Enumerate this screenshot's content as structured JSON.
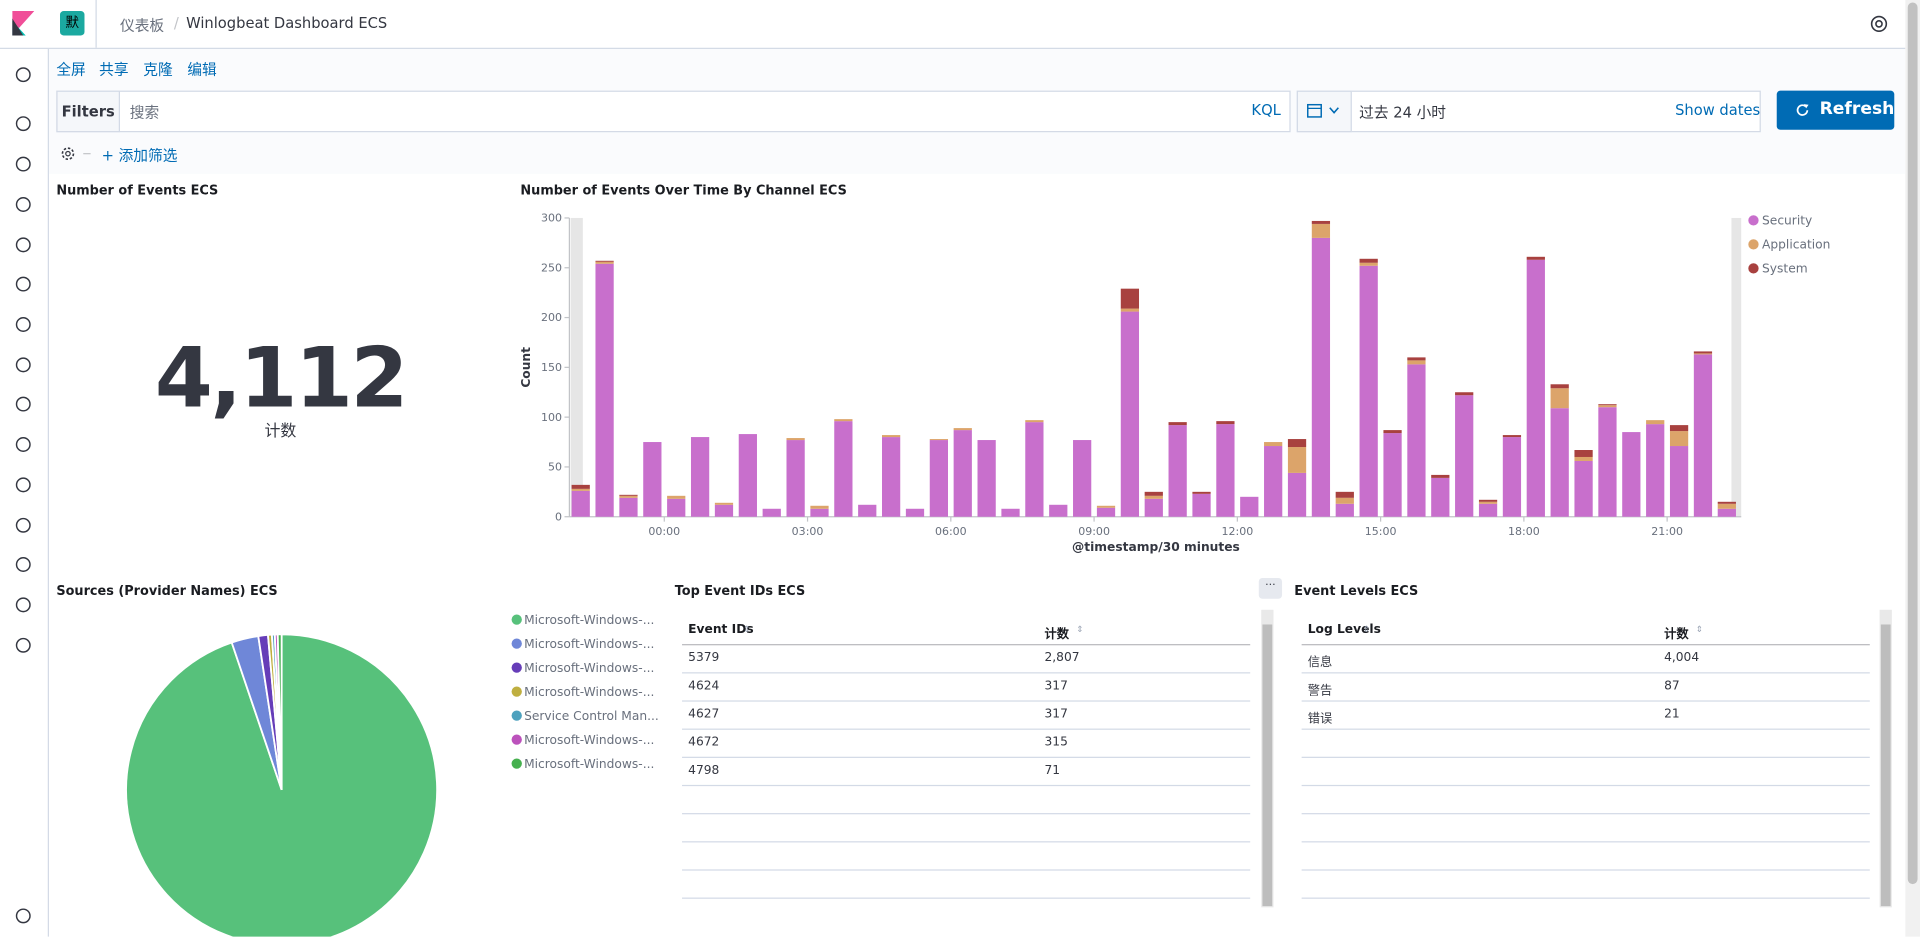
{
  "header": {
    "badge": "默",
    "breadcrumbs": [
      "仪表板",
      "Winlogbeat Dashboard ECS"
    ]
  },
  "top_nav": [
    "全屏",
    "共享",
    "克隆",
    "编辑"
  ],
  "query_bar": {
    "filters_label": "Filters",
    "placeholder": "搜索",
    "language": "KQL",
    "time_range": "过去 24 小时",
    "show_dates": "Show dates",
    "refresh": "Refresh",
    "add_filter": "+ 添加筛选"
  },
  "metric_panel": {
    "title": "Number of Events ECS",
    "value": "4,112",
    "label": "计数"
  },
  "chart_data": [
    {
      "type": "bar",
      "stacked": true,
      "title": "Number of Events Over Time By Channel ECS",
      "xlabel": "@timestamp/30 minutes",
      "ylabel": "Count",
      "categories": [
        null,
        null,
        null,
        null,
        "00:00",
        null,
        null,
        null,
        null,
        null,
        "03:00",
        null,
        null,
        null,
        null,
        null,
        "06:00",
        null,
        null,
        null,
        null,
        null,
        "09:00",
        null,
        null,
        null,
        null,
        null,
        "12:00",
        null,
        null,
        null,
        null,
        null,
        "15:00",
        null,
        null,
        null,
        null,
        null,
        "18:00",
        null,
        null,
        null,
        null,
        null,
        "21:00",
        null,
        null
      ],
      "series": [
        {
          "name": "Security",
          "color": "#c86fcc",
          "values": [
            26,
            254,
            19,
            75,
            18,
            80,
            12,
            83,
            8,
            77,
            8,
            96,
            12,
            80,
            8,
            77,
            87,
            77,
            8,
            95,
            12,
            77,
            9,
            206,
            18,
            92,
            23,
            93,
            20,
            71,
            44,
            280,
            13,
            252,
            84,
            153,
            39,
            122,
            13,
            80,
            258,
            109,
            56,
            110,
            85,
            93,
            71,
            163,
            8
          ]
        },
        {
          "name": "Application",
          "color": "#dca46a",
          "values": [
            2,
            2,
            2,
            0,
            3,
            0,
            2,
            0,
            0,
            2,
            3,
            2,
            0,
            2,
            0,
            1,
            2,
            0,
            0,
            2,
            0,
            0,
            2,
            3,
            3,
            0,
            0,
            0,
            0,
            4,
            26,
            14,
            6,
            3,
            0,
            4,
            0,
            0,
            2,
            0,
            0,
            20,
            4,
            2,
            0,
            4,
            15,
            1,
            5
          ]
        },
        {
          "name": "System",
          "color": "#a8413f",
          "values": [
            4,
            1,
            1,
            0,
            0,
            0,
            0,
            0,
            0,
            0,
            0,
            0,
            0,
            0,
            0,
            0,
            0,
            0,
            0,
            0,
            0,
            0,
            0,
            20,
            4,
            3,
            2,
            3,
            0,
            0,
            8,
            3,
            6,
            4,
            3,
            3,
            3,
            3,
            2,
            2,
            3,
            4,
            7,
            1,
            0,
            0,
            6,
            2,
            2
          ]
        }
      ],
      "ylim": [
        0,
        300
      ],
      "yticks": [
        0,
        50,
        100,
        150,
        200,
        250,
        300
      ],
      "legend": "right"
    },
    {
      "type": "pie",
      "title": "Sources (Provider Names) ECS",
      "categories": [
        "Microsoft-Windows-...",
        "Microsoft-Windows-...",
        "Microsoft-Windows-...",
        "Microsoft-Windows-...",
        "Service Control Man...",
        "Microsoft-Windows-...",
        "Microsoft-Windows-..."
      ],
      "values": [
        94.8,
        2.8,
        1.0,
        0.4,
        0.3,
        0.3,
        0.4
      ],
      "colors": [
        "#57c17b",
        "#6f87d8",
        "#663db8",
        "#bfaf40",
        "#4da1be",
        "#bc52bc",
        "#46b04f"
      ],
      "legend": "right"
    }
  ],
  "table_event_ids": {
    "title": "Top Event IDs ECS",
    "columns": [
      "Event IDs",
      "计数"
    ],
    "rows": [
      [
        "5379",
        "2,807"
      ],
      [
        "4624",
        "317"
      ],
      [
        "4627",
        "317"
      ],
      [
        "4672",
        "315"
      ],
      [
        "4798",
        "71"
      ]
    ]
  },
  "table_event_levels": {
    "title": "Event Levels ECS",
    "columns": [
      "Log Levels",
      "计数"
    ],
    "rows": [
      [
        "信息",
        "4,004"
      ],
      [
        "警告",
        "87"
      ],
      [
        "错误",
        "21"
      ]
    ]
  }
}
